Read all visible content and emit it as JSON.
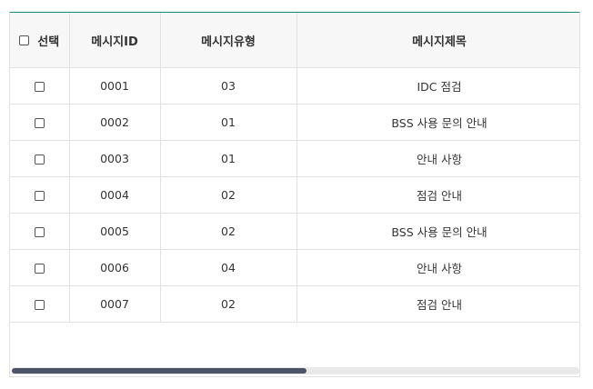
{
  "grid": {
    "headers": {
      "select": "선택",
      "id": "메시지ID",
      "type": "메시지유형",
      "title": "메시지제목"
    },
    "rows": [
      {
        "id": "0001",
        "type": "03",
        "title": "IDC 점검"
      },
      {
        "id": "0002",
        "type": "01",
        "title": "BSS 사용 문의 안내"
      },
      {
        "id": "0003",
        "type": "01",
        "title": "안내 사항"
      },
      {
        "id": "0004",
        "type": "02",
        "title": "점검 안내"
      },
      {
        "id": "0005",
        "type": "02",
        "title": "BSS 사용 문의 안내"
      },
      {
        "id": "0006",
        "type": "04",
        "title": "안내 사항"
      },
      {
        "id": "0007",
        "type": "02",
        "title": "점검 안내"
      }
    ]
  },
  "colors": {
    "header_top_border": "#1a8a7e",
    "header_bg": "#f7f7f7",
    "border": "#e2e2e2",
    "scroll_thumb": "#4a5568"
  },
  "icons": {
    "checkbox": "checkbox-icon"
  }
}
